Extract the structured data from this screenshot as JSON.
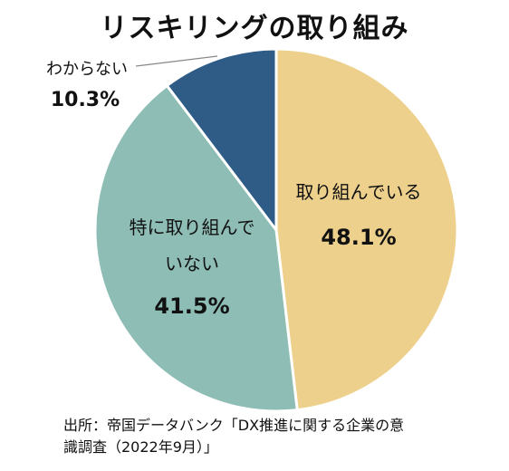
{
  "chart_data": {
    "type": "pie",
    "title": "リスキリングの取り組み",
    "slices": [
      {
        "label": "取り組んでいる",
        "value": 48.1,
        "value_label": "48.1%",
        "color": "#EDD08C"
      },
      {
        "label_lines": [
          "特に取り組んで",
          "いない"
        ],
        "value": 41.5,
        "value_label": "41.5%",
        "color": "#8DBDB4"
      },
      {
        "label": "わからない",
        "value": 10.3,
        "value_label": "10.3%",
        "color": "#2F5B87"
      }
    ],
    "start_angle": "12 o'clock",
    "direction": "clockwise"
  },
  "source": {
    "line1": "出所：帝国データバンク「DX推進に関する企業の意",
    "line2": "識調査（2022年9月）」"
  }
}
